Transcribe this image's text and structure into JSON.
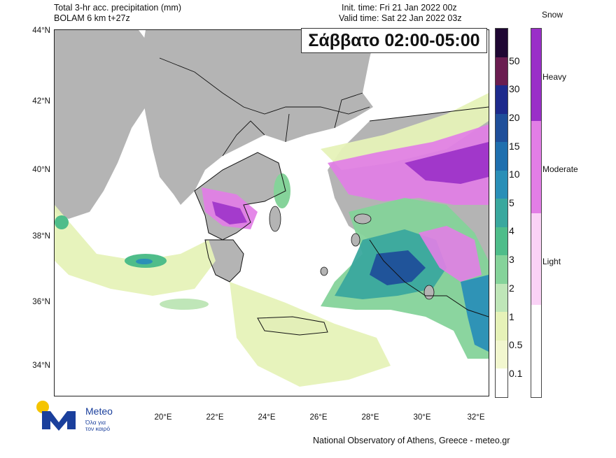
{
  "header": {
    "title_line1": "Total 3-hr acc. precipitation (mm)",
    "title_line2": "BOLAM 6 km t+27z",
    "init_time": "Init. time: Fri 21 Jan 2022 00z",
    "valid_time": "Valid time: Sat 22 Jan 2022 03z"
  },
  "banner": "Σάββατο 02:00-05:00",
  "axes": {
    "lat_labels": [
      "44°N",
      "42°N",
      "40°N",
      "38°N",
      "36°N",
      "34°N"
    ],
    "lon_labels": [
      "20°E",
      "22°E",
      "24°E",
      "26°E",
      "28°E",
      "30°E",
      "32°E"
    ]
  },
  "rain_legend": {
    "labels": [
      "50",
      "30",
      "20",
      "15",
      "10",
      "5",
      "4",
      "3",
      "2",
      "1",
      "0.5",
      "0.1"
    ],
    "colors": [
      "#1f0733",
      "#6a1d50",
      "#1d2a8c",
      "#1f4f9a",
      "#1f6fae",
      "#2a8fb7",
      "#3aa89e",
      "#4fbd8a",
      "#85d39a",
      "#bfe6b8",
      "#e6f2b8",
      "#f2f7cf",
      "#ffffff"
    ]
  },
  "snow_legend": {
    "title": "Snow",
    "labels": [
      "Heavy",
      "Moderate",
      "Light"
    ],
    "colors": [
      "#9a2fc8",
      "#e27ee6",
      "#fad2f6",
      "#ffffff"
    ]
  },
  "map_colors": {
    "land": "#b4b4b4",
    "sea": "#ffffff",
    "border": "#111111"
  },
  "logo": {
    "name": "Meteo",
    "tagline_line1": "Όλα για",
    "tagline_line2": "τον καιρό",
    "brand_blue": "#1a3f9c",
    "sun_yellow": "#f5c400"
  },
  "footer": "National Observatory of Athens, Greece - meteo.gr"
}
